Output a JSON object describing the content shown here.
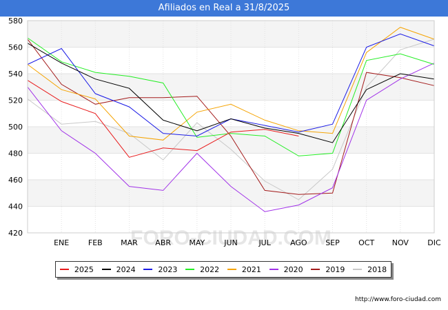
{
  "title": "Afiliados en Real a 31/8/2025",
  "source": "http://www.foro-ciudad.com",
  "watermark": "FORO-CIUDAD.COM",
  "chart_data": {
    "type": "line",
    "title": "Afiliados en Real a 31/8/2025",
    "xlabel": "",
    "ylabel": "",
    "categories": [
      "",
      "ENE",
      "FEB",
      "MAR",
      "ABR",
      "MAY",
      "JUN",
      "JUL",
      "AGO",
      "SEP",
      "OCT",
      "NOV",
      "DIC"
    ],
    "ylim": [
      420,
      580
    ],
    "yticks": [
      420,
      440,
      460,
      480,
      500,
      520,
      540,
      560,
      580
    ],
    "grid": true,
    "legend_position": "bottom",
    "series": [
      {
        "name": "2025",
        "color": "#e8191a",
        "values": [
          535,
          519,
          510,
          477,
          484,
          482,
          496,
          498,
          493,
          null,
          null,
          null,
          null
        ]
      },
      {
        "name": "2024",
        "color": "#000000",
        "values": [
          563,
          548,
          536,
          529,
          505,
          497,
          506,
          499,
          495,
          488,
          528,
          540,
          536
        ]
      },
      {
        "name": "2023",
        "color": "#1a1ae6",
        "values": [
          547,
          559,
          525,
          515,
          495,
          493,
          506,
          501,
          496,
          502,
          560,
          570,
          561
        ]
      },
      {
        "name": "2022",
        "color": "#22ee22",
        "values": [
          567,
          549,
          541,
          538,
          533,
          492,
          495,
          493,
          478,
          480,
          550,
          555,
          547
        ]
      },
      {
        "name": "2021",
        "color": "#f5a300",
        "values": [
          547,
          528,
          521,
          493,
          490,
          511,
          517,
          505,
          497,
          495,
          556,
          575,
          566
        ]
      },
      {
        "name": "2020",
        "color": "#a030e8",
        "values": [
          530,
          497,
          480,
          455,
          452,
          480,
          455,
          436,
          441,
          454,
          520,
          536,
          548
        ]
      },
      {
        "name": "2019",
        "color": "#a31a1a",
        "values": [
          566,
          532,
          517,
          522,
          522,
          523,
          493,
          452,
          449,
          450,
          541,
          537,
          531
        ]
      },
      {
        "name": "2018",
        "color": "#c8c8c8",
        "values": [
          521,
          502,
          504,
          495,
          475,
          503,
          483,
          459,
          445,
          468,
          530,
          558,
          566
        ]
      }
    ]
  }
}
